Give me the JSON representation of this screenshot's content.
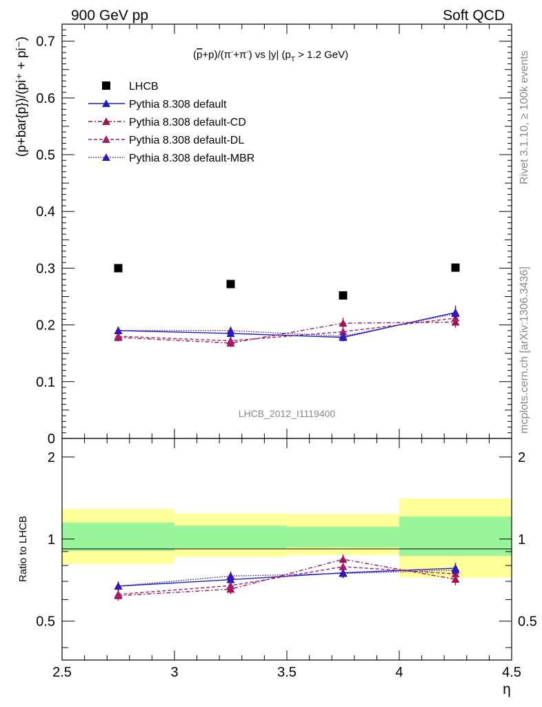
{
  "header": {
    "left": "900 GeV pp",
    "right": "Soft QCD"
  },
  "side_text": {
    "rivet": "Rivet 3.1.10, ≥ 100k events",
    "mcplots": "mcplots.cern.ch [arXiv:1306.3436]"
  },
  "watermark": "LHCB_2012_I1119400",
  "title": {
    "pre": "(",
    "pbar": "p",
    "mid1": "+p)/(π",
    "sup1": "-",
    "mid2": "+π",
    "sup2": "-",
    "mid3": ") vs |y| (p",
    "sub": "T",
    "post": " > 1.2 GeV)"
  },
  "ylabel_main": "(p+bar{p})/(pi⁺ + pi⁻)",
  "ylabel_ratio": "Ratio to LHCB",
  "xlabel": "η",
  "colors": {
    "data": "#000000",
    "default": "#1a1acc",
    "cd": "#a0134c",
    "dl": "#a81a6a",
    "mbr": "#3a15b0",
    "band_inner": "#99f599",
    "band_outer": "#ffff99"
  },
  "chart_data": [
    {
      "type": "scatter",
      "panel": "main",
      "x": [
        2.75,
        3.25,
        3.75,
        4.25
      ],
      "xlim": [
        2.5,
        4.5
      ],
      "ylim": [
        0,
        0.73
      ],
      "xticks": [
        "2.5",
        "3",
        "3.5",
        "4",
        "4.5"
      ],
      "yticks": [
        "0",
        "0.1",
        "0.2",
        "0.3",
        "0.4",
        "0.5",
        "0.6",
        "0.7"
      ],
      "legend_position": "top-left",
      "series": [
        {
          "name": "LHCB",
          "values": [
            0.3,
            0.272,
            0.252,
            0.301
          ],
          "style": "marker"
        },
        {
          "name": "Pythia 8.308 default",
          "values": [
            0.19,
            0.185,
            0.178,
            0.222
          ],
          "err": [
            0.007,
            0.007,
            0.007,
            0.012
          ],
          "style": "solid"
        },
        {
          "name": "Pythia 8.308 default-CD",
          "values": [
            0.178,
            0.168,
            0.203,
            0.205
          ],
          "err": [
            0.007,
            0.007,
            0.01,
            0.01
          ],
          "style": "dashdot"
        },
        {
          "name": "Pythia 8.308 default-DL",
          "values": [
            0.18,
            0.172,
            0.188,
            0.212
          ],
          "err": [
            0.007,
            0.007,
            0.008,
            0.009
          ],
          "style": "dashed"
        },
        {
          "name": "Pythia 8.308 default-MBR",
          "values": [
            0.19,
            0.19,
            0.18,
            0.22
          ],
          "err": [
            0.007,
            0.007,
            0.007,
            0.01
          ],
          "style": "dotted"
        }
      ]
    },
    {
      "type": "line",
      "panel": "ratio",
      "ylabel": "Ratio to LHCB",
      "xlabel": "η",
      "x": [
        2.75,
        3.25,
        3.75,
        4.25
      ],
      "xlim": [
        2.5,
        4.5
      ],
      "ylim": [
        0.36,
        2.34
      ],
      "log_y": true,
      "yticks": [
        "0.5",
        "1",
        "2"
      ],
      "bands": {
        "x_edges": [
          2.5,
          3.0,
          3.5,
          4.0,
          4.5
        ],
        "inner_low": [
          0.905,
          0.925,
          0.932,
          0.868
        ],
        "inner_high": [
          1.15,
          1.12,
          1.11,
          1.21
        ],
        "outer_low": [
          0.81,
          0.86,
          0.872,
          0.722
        ],
        "outer_high": [
          1.29,
          1.24,
          1.235,
          1.41
        ]
      },
      "series": [
        {
          "name": "Pythia 8.308 default",
          "values": [
            0.672,
            0.71,
            0.752,
            0.782
          ],
          "err": [
            0.026,
            0.028,
            0.03,
            0.036
          ]
        },
        {
          "name": "Pythia 8.308 default-CD",
          "values": [
            0.62,
            0.655,
            0.843,
            0.712
          ],
          "err": [
            0.025,
            0.027,
            0.035,
            0.035
          ]
        },
        {
          "name": "Pythia 8.308 default-DL",
          "values": [
            0.627,
            0.675,
            0.792,
            0.745
          ],
          "err": [
            0.025,
            0.027,
            0.032,
            0.035
          ]
        },
        {
          "name": "Pythia 8.308 default-MBR",
          "values": [
            0.672,
            0.732,
            0.748,
            0.77
          ],
          "err": [
            0.026,
            0.028,
            0.03,
            0.036
          ]
        }
      ]
    }
  ]
}
